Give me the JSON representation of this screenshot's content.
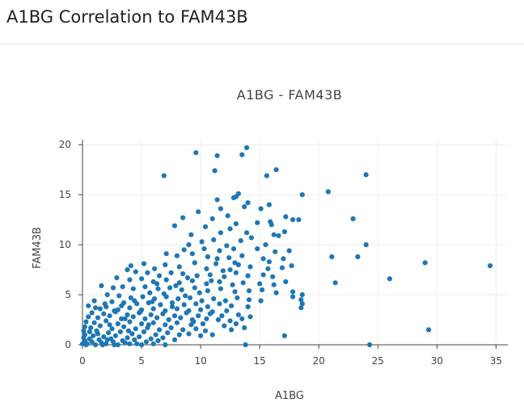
{
  "page": {
    "title": "A1BG Correlation to FAM43B"
  },
  "colors": {
    "marker": "#1f77b4",
    "grid": "#eeeeee",
    "axis": "#444444"
  },
  "chart_data": {
    "type": "scatter",
    "title": "A1BG - FAM43B",
    "xlabel": "A1BG",
    "ylabel": "FAM43B",
    "xlim": [
      0,
      36
    ],
    "ylim": [
      0,
      20.5
    ],
    "x_ticks": [
      0,
      5,
      10,
      15,
      20,
      25,
      30,
      35
    ],
    "y_ticks": [
      0,
      5,
      10,
      15,
      20
    ],
    "grid": true,
    "legend": "none",
    "points": [
      [
        9.6,
        19.2
      ],
      [
        13.5,
        19.0
      ],
      [
        13.9,
        19.7
      ],
      [
        11.4,
        18.9
      ],
      [
        11.2,
        17.4
      ],
      [
        6.9,
        16.9
      ],
      [
        15.6,
        16.9
      ],
      [
        16.4,
        17.5
      ],
      [
        24.0,
        17.0
      ],
      [
        13.2,
        15.1
      ],
      [
        12.8,
        14.7
      ],
      [
        11.4,
        14.5
      ],
      [
        13.0,
        14.8
      ],
      [
        18.6,
        15.0
      ],
      [
        20.8,
        15.3
      ],
      [
        14.0,
        14.2
      ],
      [
        13.7,
        13.8
      ],
      [
        11.7,
        13.6
      ],
      [
        9.8,
        13.3
      ],
      [
        15.1,
        13.6
      ],
      [
        15.8,
        14.0
      ],
      [
        8.5,
        12.7
      ],
      [
        7.8,
        11.9
      ],
      [
        11.0,
        12.6
      ],
      [
        12.3,
        12.9
      ],
      [
        13.0,
        12.1
      ],
      [
        14.8,
        12.2
      ],
      [
        15.9,
        12.3
      ],
      [
        17.2,
        12.8
      ],
      [
        17.8,
        12.5
      ],
      [
        18.3,
        12.5
      ],
      [
        22.9,
        12.6
      ],
      [
        16.0,
        12.0
      ],
      [
        10.4,
        11.8
      ],
      [
        9.2,
        11.0
      ],
      [
        11.7,
        11.2
      ],
      [
        12.5,
        11.6
      ],
      [
        13.9,
        11.2
      ],
      [
        16.2,
        11.0
      ],
      [
        17.1,
        11.3
      ],
      [
        10.1,
        10.3
      ],
      [
        11.1,
        10.5
      ],
      [
        12.2,
        9.9
      ],
      [
        13.4,
        10.4
      ],
      [
        14.3,
        10.7
      ],
      [
        15.5,
        10.0
      ],
      [
        16.6,
        10.9
      ],
      [
        9.0,
        10.0
      ],
      [
        8.6,
        9.5
      ],
      [
        10.3,
        9.6
      ],
      [
        11.6,
        9.4
      ],
      [
        12.8,
        9.6
      ],
      [
        14.8,
        9.6
      ],
      [
        16.3,
        9.3
      ],
      [
        17.5,
        9.4
      ],
      [
        24.0,
        10.0
      ],
      [
        21.1,
        8.8
      ],
      [
        23.3,
        8.8
      ],
      [
        7.1,
        9.1
      ],
      [
        8.0,
        8.9
      ],
      [
        9.3,
        9.1
      ],
      [
        10.6,
        8.8
      ],
      [
        11.4,
        8.6
      ],
      [
        12.4,
        8.7
      ],
      [
        13.5,
        8.9
      ],
      [
        15.3,
        8.6
      ],
      [
        15.8,
        8.3
      ],
      [
        17.0,
        8.6
      ],
      [
        29.0,
        8.2
      ],
      [
        34.5,
        7.9
      ],
      [
        4.1,
        7.9
      ],
      [
        5.2,
        8.1
      ],
      [
        6.1,
        7.6
      ],
      [
        7.0,
        8.0
      ],
      [
        8.2,
        7.8
      ],
      [
        9.5,
        8.2
      ],
      [
        10.5,
        7.6
      ],
      [
        11.3,
        8.1
      ],
      [
        12.5,
        7.5
      ],
      [
        13.2,
        8.0
      ],
      [
        14.2,
        7.8
      ],
      [
        15.7,
        7.6
      ],
      [
        16.9,
        7.7
      ],
      [
        17.7,
        7.9
      ],
      [
        3.8,
        7.5
      ],
      [
        4.5,
        7.3
      ],
      [
        5.5,
        7.2
      ],
      [
        6.5,
        6.9
      ],
      [
        7.5,
        7.2
      ],
      [
        8.5,
        7.1
      ],
      [
        9.7,
        6.9
      ],
      [
        10.8,
        7.0
      ],
      [
        12.0,
        6.8
      ],
      [
        13.0,
        7.2
      ],
      [
        14.0,
        6.9
      ],
      [
        15.3,
        7.0
      ],
      [
        16.1,
        6.8
      ],
      [
        21.4,
        6.2
      ],
      [
        26.0,
        6.6
      ],
      [
        2.9,
        6.7
      ],
      [
        4.0,
        6.5
      ],
      [
        5.0,
        6.6
      ],
      [
        6.0,
        6.3
      ],
      [
        7.1,
        6.5
      ],
      [
        8.2,
        6.2
      ],
      [
        9.3,
        6.4
      ],
      [
        10.5,
        6.1
      ],
      [
        11.6,
        6.3
      ],
      [
        12.7,
        6.0
      ],
      [
        13.6,
        6.2
      ],
      [
        15.0,
        6.1
      ],
      [
        16.2,
        6.0
      ],
      [
        17.2,
        6.3
      ],
      [
        1.6,
        5.9
      ],
      [
        2.6,
        5.7
      ],
      [
        3.4,
        5.8
      ],
      [
        4.3,
        5.6
      ],
      [
        5.3,
        5.8
      ],
      [
        6.4,
        5.6
      ],
      [
        7.4,
        5.7
      ],
      [
        8.4,
        5.5
      ],
      [
        9.5,
        5.7
      ],
      [
        10.6,
        5.4
      ],
      [
        11.7,
        5.6
      ],
      [
        12.9,
        5.3
      ],
      [
        14.1,
        5.4
      ],
      [
        15.2,
        5.5
      ],
      [
        16.4,
        5.2
      ],
      [
        17.8,
        5.3
      ],
      [
        18.6,
        5.0
      ],
      [
        18.5,
        4.5
      ],
      [
        18.6,
        4.1
      ],
      [
        18.5,
        3.7
      ],
      [
        17.8,
        4.8
      ],
      [
        2.1,
        5.0
      ],
      [
        3.1,
        4.9
      ],
      [
        4.1,
        4.7
      ],
      [
        5.1,
        4.8
      ],
      [
        6.1,
        4.6
      ],
      [
        7.1,
        4.8
      ],
      [
        8.1,
        4.6
      ],
      [
        9.1,
        4.7
      ],
      [
        10.1,
        4.4
      ],
      [
        11.1,
        4.6
      ],
      [
        12.1,
        4.4
      ],
      [
        13.1,
        4.7
      ],
      [
        14.1,
        4.5
      ],
      [
        15.1,
        4.4
      ],
      [
        1.0,
        4.4
      ],
      [
        2.5,
        4.3
      ],
      [
        3.5,
        4.2
      ],
      [
        4.6,
        4.1
      ],
      [
        5.6,
        4.2
      ],
      [
        6.6,
        4.0
      ],
      [
        7.6,
        4.2
      ],
      [
        8.6,
        4.0
      ],
      [
        9.6,
        4.1
      ],
      [
        10.6,
        3.8
      ],
      [
        11.6,
        4.1
      ],
      [
        12.6,
        3.9
      ],
      [
        14.0,
        3.8
      ],
      [
        1.5,
        3.6
      ],
      [
        2.0,
        3.8
      ],
      [
        3.0,
        3.5
      ],
      [
        4.0,
        3.7
      ],
      [
        5.0,
        3.5
      ],
      [
        6.0,
        3.6
      ],
      [
        7.0,
        3.4
      ],
      [
        8.0,
        3.6
      ],
      [
        9.0,
        3.4
      ],
      [
        10.0,
        3.5
      ],
      [
        11.0,
        3.3
      ],
      [
        12.2,
        3.4
      ],
      [
        0.8,
        3.2
      ],
      [
        1.8,
        3.1
      ],
      [
        2.8,
        3.3
      ],
      [
        3.8,
        3.0
      ],
      [
        4.8,
        3.2
      ],
      [
        5.8,
        3.0
      ],
      [
        6.8,
        3.1
      ],
      [
        7.8,
        2.9
      ],
      [
        8.8,
        3.2
      ],
      [
        9.8,
        2.9
      ],
      [
        10.8,
        3.1
      ],
      [
        13.2,
        3.0
      ],
      [
        14.2,
        2.8
      ],
      [
        0.5,
        2.8
      ],
      [
        1.3,
        2.7
      ],
      [
        2.3,
        2.9
      ],
      [
        3.3,
        2.6
      ],
      [
        4.3,
        2.8
      ],
      [
        5.3,
        2.6
      ],
      [
        6.3,
        2.7
      ],
      [
        7.3,
        2.5
      ],
      [
        8.3,
        2.7
      ],
      [
        9.3,
        2.5
      ],
      [
        10.5,
        2.6
      ],
      [
        11.5,
        2.5
      ],
      [
        12.5,
        2.4
      ],
      [
        13.5,
        2.6
      ],
      [
        0.3,
        2.3
      ],
      [
        1.0,
        2.2
      ],
      [
        2.0,
        2.4
      ],
      [
        3.0,
        2.1
      ],
      [
        4.0,
        2.3
      ],
      [
        5.0,
        2.1
      ],
      [
        6.0,
        2.2
      ],
      [
        7.0,
        2.0
      ],
      [
        8.0,
        2.2
      ],
      [
        9.2,
        2.0
      ],
      [
        10.2,
        2.1
      ],
      [
        12.0,
        1.9
      ],
      [
        13.0,
        2.1
      ],
      [
        0.2,
        1.8
      ],
      [
        0.7,
        1.7
      ],
      [
        1.5,
        1.9
      ],
      [
        2.5,
        1.6
      ],
      [
        3.5,
        1.8
      ],
      [
        4.5,
        1.6
      ],
      [
        5.5,
        1.7
      ],
      [
        6.5,
        1.5
      ],
      [
        7.5,
        1.7
      ],
      [
        8.5,
        1.5
      ],
      [
        9.6,
        1.6
      ],
      [
        12.6,
        1.5
      ],
      [
        0.1,
        1.4
      ],
      [
        0.6,
        1.3
      ],
      [
        1.2,
        1.4
      ],
      [
        2.2,
        1.2
      ],
      [
        3.2,
        1.3
      ],
      [
        4.2,
        1.1
      ],
      [
        5.2,
        1.3
      ],
      [
        6.2,
        1.0
      ],
      [
        7.2,
        1.2
      ],
      [
        8.2,
        1.0
      ],
      [
        9.0,
        1.1
      ],
      [
        10.0,
        0.9
      ],
      [
        11.0,
        1.0
      ],
      [
        0.2,
        1.0
      ],
      [
        0.9,
        0.9
      ],
      [
        1.8,
        0.8
      ],
      [
        2.8,
        0.9
      ],
      [
        3.8,
        0.7
      ],
      [
        4.8,
        0.8
      ],
      [
        5.8,
        0.6
      ],
      [
        6.8,
        0.7
      ],
      [
        7.8,
        0.5
      ],
      [
        0.1,
        0.7
      ],
      [
        0.6,
        0.6
      ],
      [
        1.4,
        0.5
      ],
      [
        2.4,
        0.6
      ],
      [
        3.4,
        0.4
      ],
      [
        4.4,
        0.5
      ],
      [
        5.4,
        0.3
      ],
      [
        6.4,
        0.4
      ],
      [
        0.2,
        0.4
      ],
      [
        0.8,
        0.3
      ],
      [
        1.6,
        0.2
      ],
      [
        2.6,
        0.3
      ],
      [
        3.6,
        0.2
      ],
      [
        4.6,
        0.1
      ],
      [
        0.0,
        0.1
      ],
      [
        0.4,
        0.1
      ],
      [
        1.1,
        0.0
      ],
      [
        2.0,
        0.1
      ],
      [
        3.0,
        0.0
      ],
      [
        4.0,
        0.1
      ],
      [
        5.0,
        0.0
      ],
      [
        6.0,
        0.1
      ],
      [
        7.0,
        0.0
      ],
      [
        0.3,
        0.0
      ],
      [
        1.7,
        0.0
      ],
      [
        2.7,
        0.0
      ],
      [
        17.1,
        0.9
      ],
      [
        13.8,
        0.0
      ],
      [
        24.3,
        0.0
      ],
      [
        29.3,
        1.5
      ],
      [
        1.9,
        4.1
      ],
      [
        1.1,
        3.7
      ],
      [
        0.5,
        3.9
      ],
      [
        2.3,
        2.0
      ],
      [
        3.6,
        2.6
      ],
      [
        4.9,
        3.3
      ],
      [
        5.9,
        4.3
      ],
      [
        6.9,
        5.1
      ],
      [
        7.9,
        5.9
      ],
      [
        8.9,
        6.7
      ],
      [
        9.9,
        5.2
      ],
      [
        10.9,
        6.4
      ],
      [
        11.9,
        7.4
      ],
      [
        12.9,
        8.2
      ],
      [
        1.3,
        1.1
      ],
      [
        2.1,
        0.5
      ],
      [
        3.9,
        1.4
      ],
      [
        5.6,
        2.0
      ],
      [
        7.6,
        3.8
      ],
      [
        8.7,
        4.9
      ],
      [
        6.3,
        6.1
      ],
      [
        5.7,
        5.2
      ],
      [
        4.4,
        4.4
      ],
      [
        3.3,
        3.9
      ],
      [
        2.7,
        3.4
      ],
      [
        9.4,
        2.3
      ],
      [
        10.4,
        1.4
      ],
      [
        11.8,
        2.9
      ],
      [
        13.7,
        1.7
      ]
    ]
  }
}
